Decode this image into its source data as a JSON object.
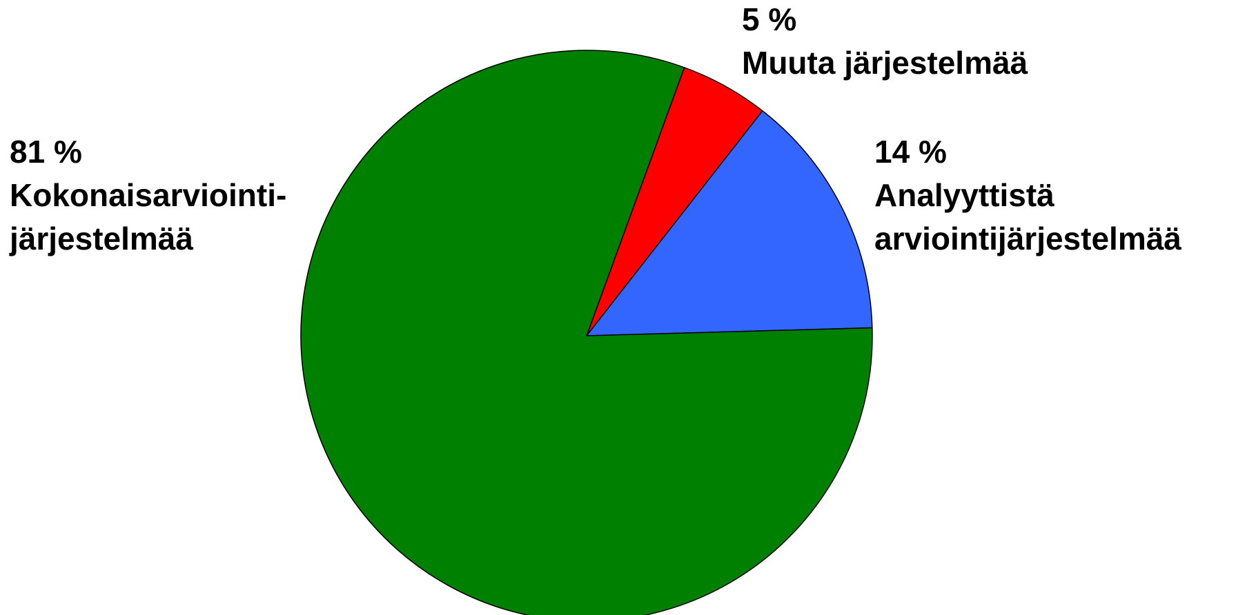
{
  "chart_data": {
    "type": "pie",
    "categories": [
      [
        "Muuta järjestelmää"
      ],
      [
        "Analyyttistä",
        "arviointijärjestelmää"
      ],
      [
        "Kokonaisarviointi-",
        "järjestelmää"
      ]
    ],
    "values": [
      5,
      14,
      81
    ],
    "value_labels": [
      "5 %",
      "14 %",
      "81 %"
    ],
    "colors": [
      "#ff0000",
      "#3366ff",
      "#008000"
    ]
  }
}
